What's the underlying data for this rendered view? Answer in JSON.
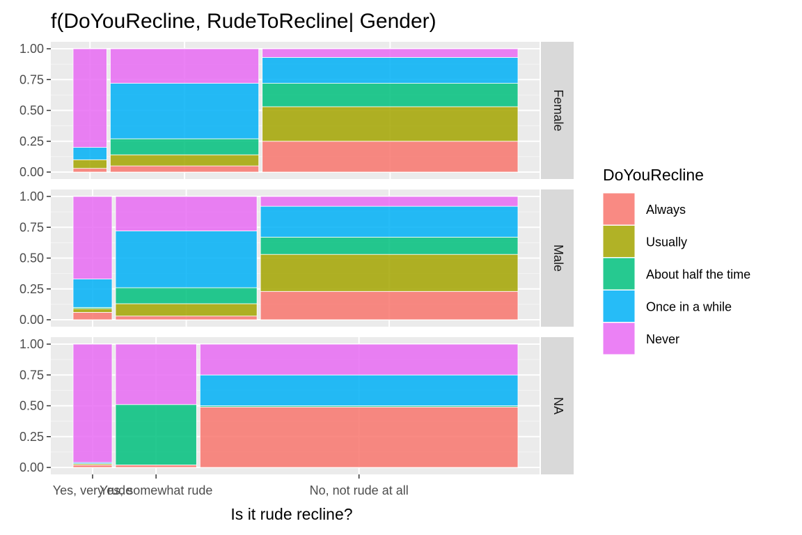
{
  "chart_data": {
    "type": "bar",
    "subtype": "mosaic",
    "title": "f(DoYouRecline, RudeToRecline| Gender)",
    "xlabel": "Is it rude recline?",
    "ylabel": "",
    "ylim": [
      0,
      1
    ],
    "y_ticks": [
      "0.00",
      "0.25",
      "0.50",
      "0.75",
      "1.00"
    ],
    "y_tick_values": [
      0,
      0.25,
      0.5,
      0.75,
      1
    ],
    "x_tick_labels": [
      "Yes, very rude",
      "Yes, somewhat rude",
      "No, not rude at all"
    ],
    "grid": true,
    "legend": {
      "title": "DoYouRecline",
      "position": "right",
      "entries": [
        "Always",
        "Usually",
        "About half the time",
        "Once in a while",
        "Never"
      ],
      "colors": [
        "#F8766D",
        "#A3A500",
        "#00BF7D",
        "#00B0F6",
        "#E76BF3"
      ]
    },
    "categories": [
      "Yes, very rude",
      "Yes, somewhat rude",
      "No, not rude at all"
    ],
    "panels": [
      {
        "facet": "Female",
        "column_width_fractions": [
          0.077,
          0.339,
          0.584
        ],
        "stacks": [
          [
            0.03,
            0.07,
            0.0,
            0.1,
            0.8
          ],
          [
            0.05,
            0.09,
            0.13,
            0.45,
            0.28
          ],
          [
            0.25,
            0.28,
            0.19,
            0.21,
            0.07
          ]
        ]
      },
      {
        "facet": "Male",
        "column_width_fractions": [
          0.089,
          0.323,
          0.588
        ],
        "stacks": [
          [
            0.06,
            0.03,
            0.01,
            0.23,
            0.67
          ],
          [
            0.03,
            0.1,
            0.13,
            0.46,
            0.28
          ],
          [
            0.23,
            0.3,
            0.14,
            0.25,
            0.08
          ]
        ]
      },
      {
        "facet": "NA",
        "column_width_fractions": [
          0.089,
          0.185,
          0.726
        ],
        "stacks": [
          [
            0.02,
            0.01,
            0.0,
            0.01,
            0.96
          ],
          [
            0.02,
            0.0,
            0.49,
            0.0,
            0.49
          ],
          [
            0.49,
            0.0,
            0.01,
            0.25,
            0.25
          ]
        ]
      }
    ]
  }
}
